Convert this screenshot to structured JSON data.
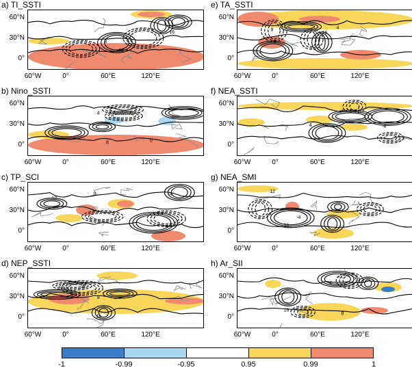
{
  "panels": [
    {
      "title": "a) TI_SSTI"
    },
    {
      "title": "e) TA_SSTI"
    },
    {
      "title": "b) Nino_SSTI"
    },
    {
      "title": "f) NEA_SSTI"
    },
    {
      "title": "c) TP_SCI"
    },
    {
      "title": "g) NEA_SMI"
    },
    {
      "title": "d) NEP_SSTI"
    },
    {
      "title": "h) Ar_SII"
    }
  ],
  "lat_labels": [
    "60°N",
    "30°N",
    "0°"
  ],
  "lon_labels": [
    "60°W",
    "0°",
    "60°E",
    "120°E"
  ],
  "contour_labels": [
    "12",
    "16",
    "8",
    "4",
    "0",
    "-4"
  ],
  "colorbar": {
    "colors": [
      "#3a7dc9",
      "#a9d6f2",
      "#ffffff",
      "#f7d65a",
      "#f08a6e"
    ],
    "labels": [
      "-1",
      "-0.99",
      "-0.95",
      "0.95",
      "0.99",
      "1"
    ]
  }
}
